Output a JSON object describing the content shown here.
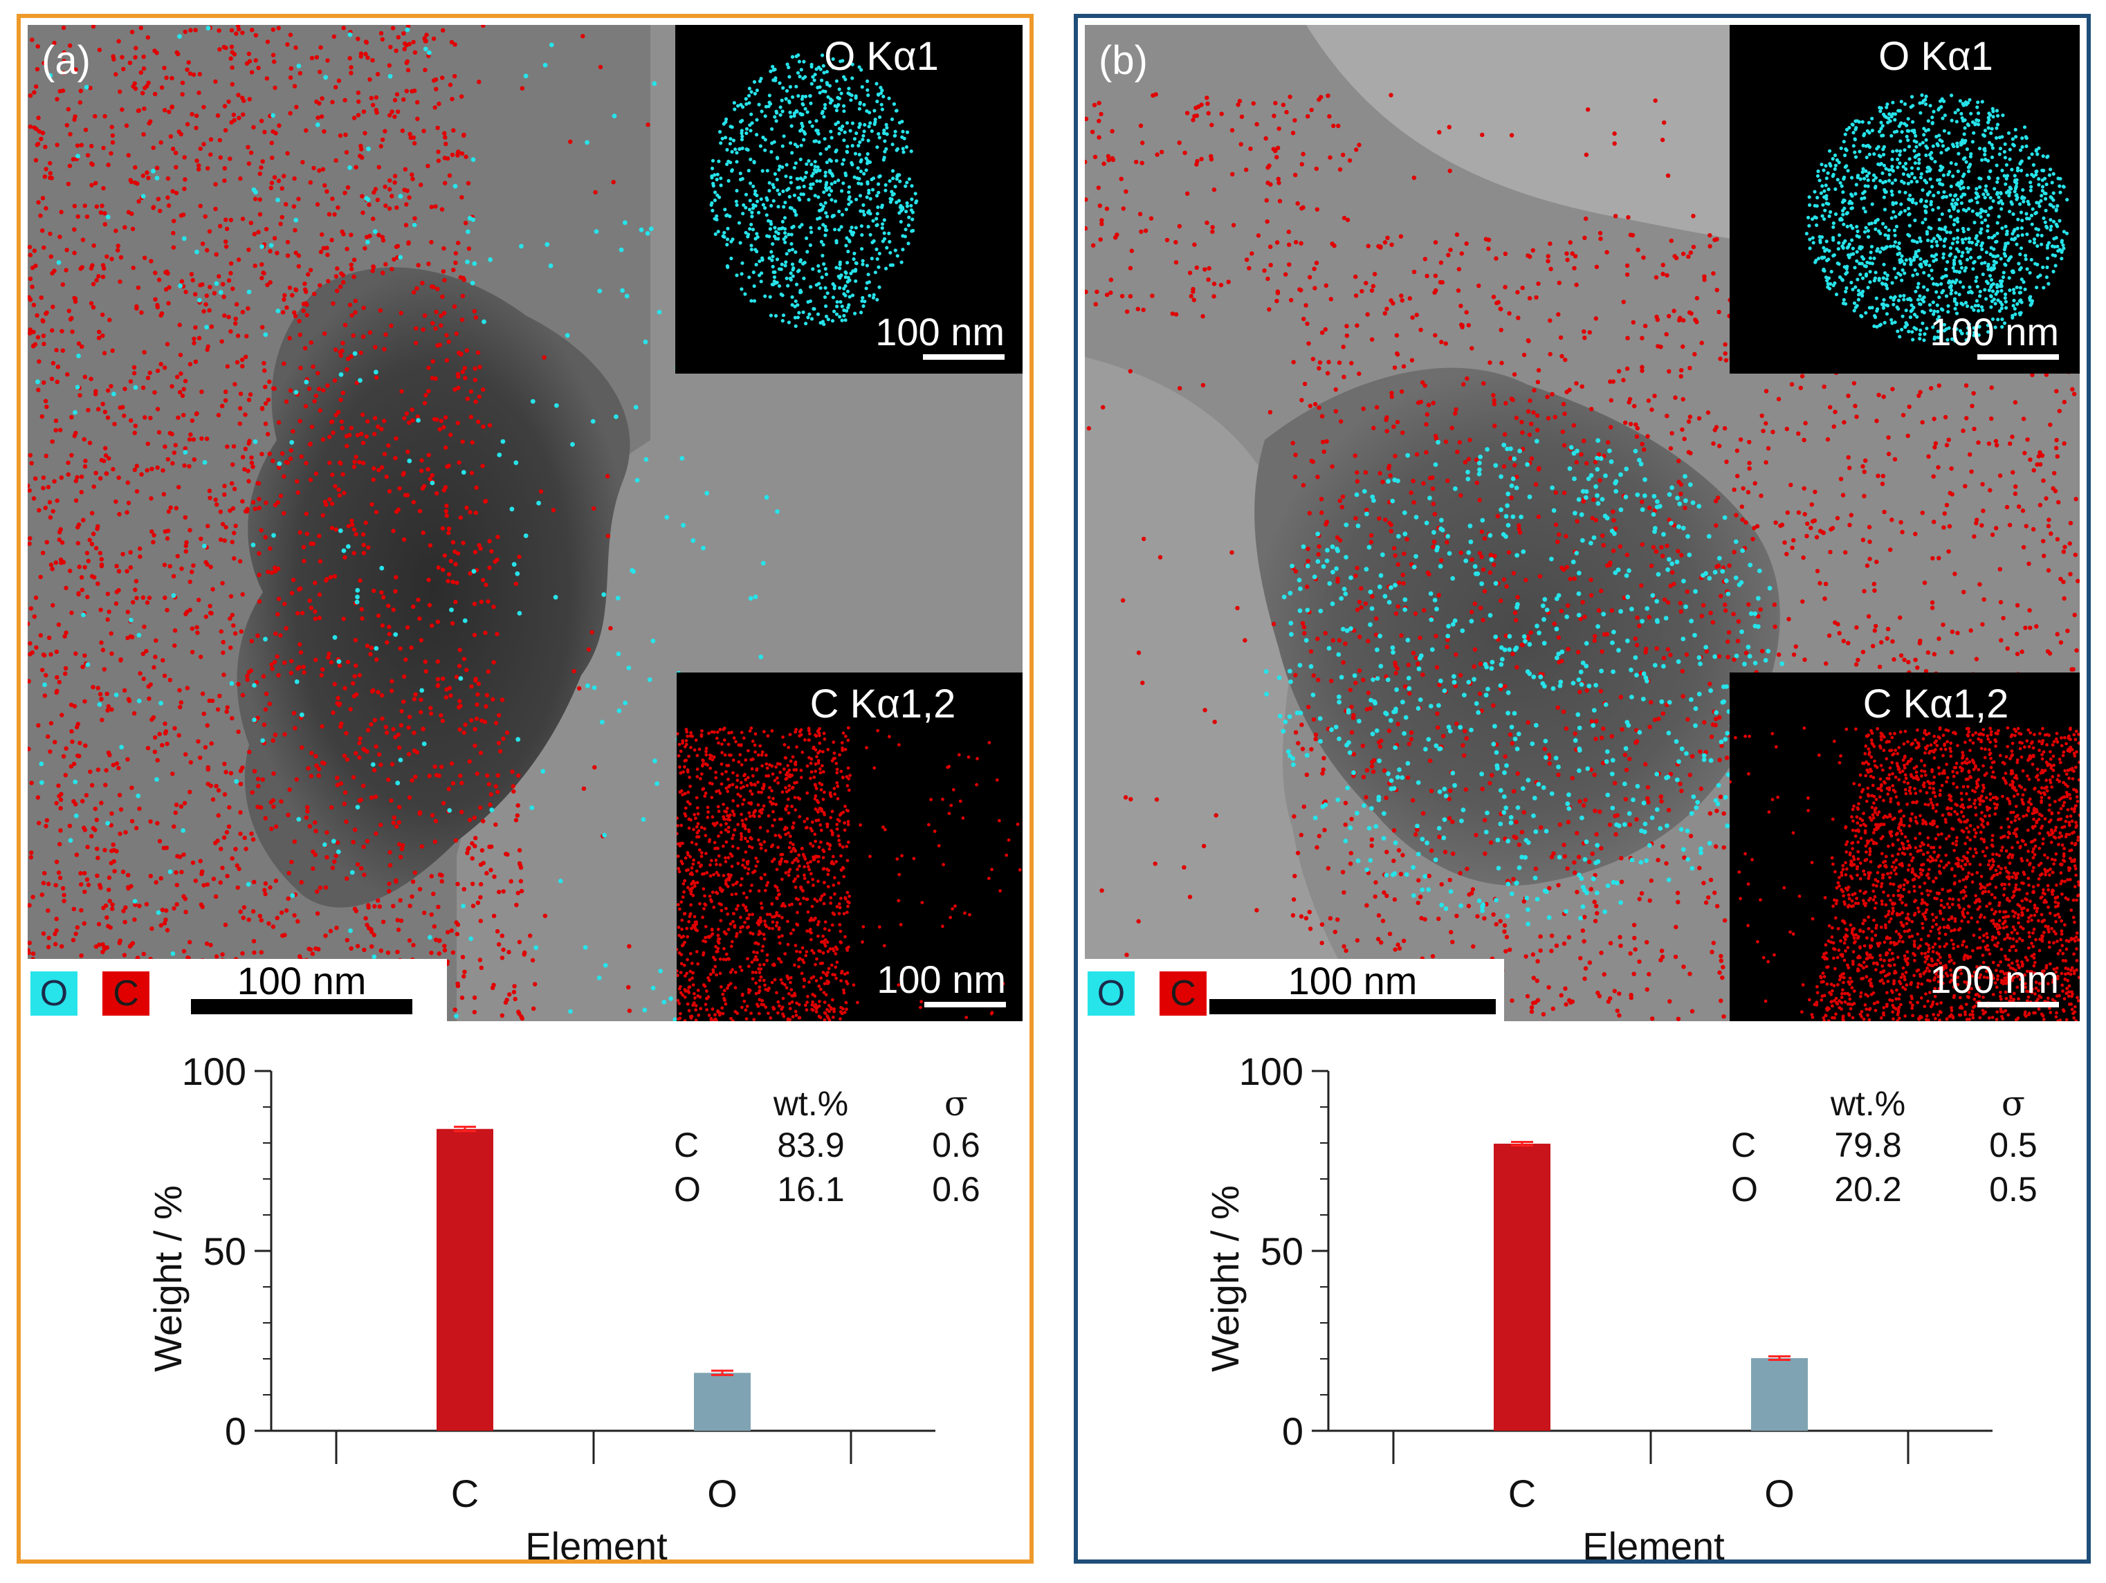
{
  "panels": [
    {
      "label": "(a)",
      "border_color": "#ee9a2a",
      "inset_o_title": "O Kα1",
      "inset_c_title": "C Kα1,2",
      "inset_scale": "100 nm",
      "main_scale": "100 nm",
      "legend_o": "O",
      "legend_c": "C"
    },
    {
      "label": "(b)",
      "border_color": "#1f4e79",
      "inset_o_title": "O Kα1",
      "inset_c_title": "C Kα1,2",
      "inset_scale": "100 nm",
      "main_scale": "100 nm",
      "legend_o": "O",
      "legend_c": "C"
    }
  ],
  "colors": {
    "oxygen": "#27e3ea",
    "carbon": "#e00000",
    "bar_c": "#c8141a",
    "bar_o": "#7fa3b3"
  },
  "chart_data": [
    {
      "type": "bar",
      "categories": [
        "C",
        "O"
      ],
      "values": [
        83.9,
        16.1
      ],
      "errors": [
        0.6,
        0.6
      ],
      "xlabel": "Element",
      "ylabel": "Weight / %",
      "ylim": [
        0,
        100
      ],
      "yticks": [
        "0",
        "50",
        "100"
      ],
      "table": {
        "headers": [
          "wt.%",
          "σ"
        ],
        "rows": [
          {
            "element": "C",
            "wt": "83.9",
            "sigma": "0.6"
          },
          {
            "element": "O",
            "wt": "16.1",
            "sigma": "0.6"
          }
        ]
      }
    },
    {
      "type": "bar",
      "categories": [
        "C",
        "O"
      ],
      "values": [
        79.8,
        20.2
      ],
      "errors": [
        0.5,
        0.5
      ],
      "xlabel": "Element",
      "ylabel": "Weight / %",
      "ylim": [
        0,
        100
      ],
      "yticks": [
        "0",
        "50",
        "100"
      ],
      "table": {
        "headers": [
          "wt.%",
          "σ"
        ],
        "rows": [
          {
            "element": "C",
            "wt": "79.8",
            "sigma": "0.5"
          },
          {
            "element": "O",
            "wt": "20.2",
            "sigma": "0.5"
          }
        ]
      }
    }
  ]
}
